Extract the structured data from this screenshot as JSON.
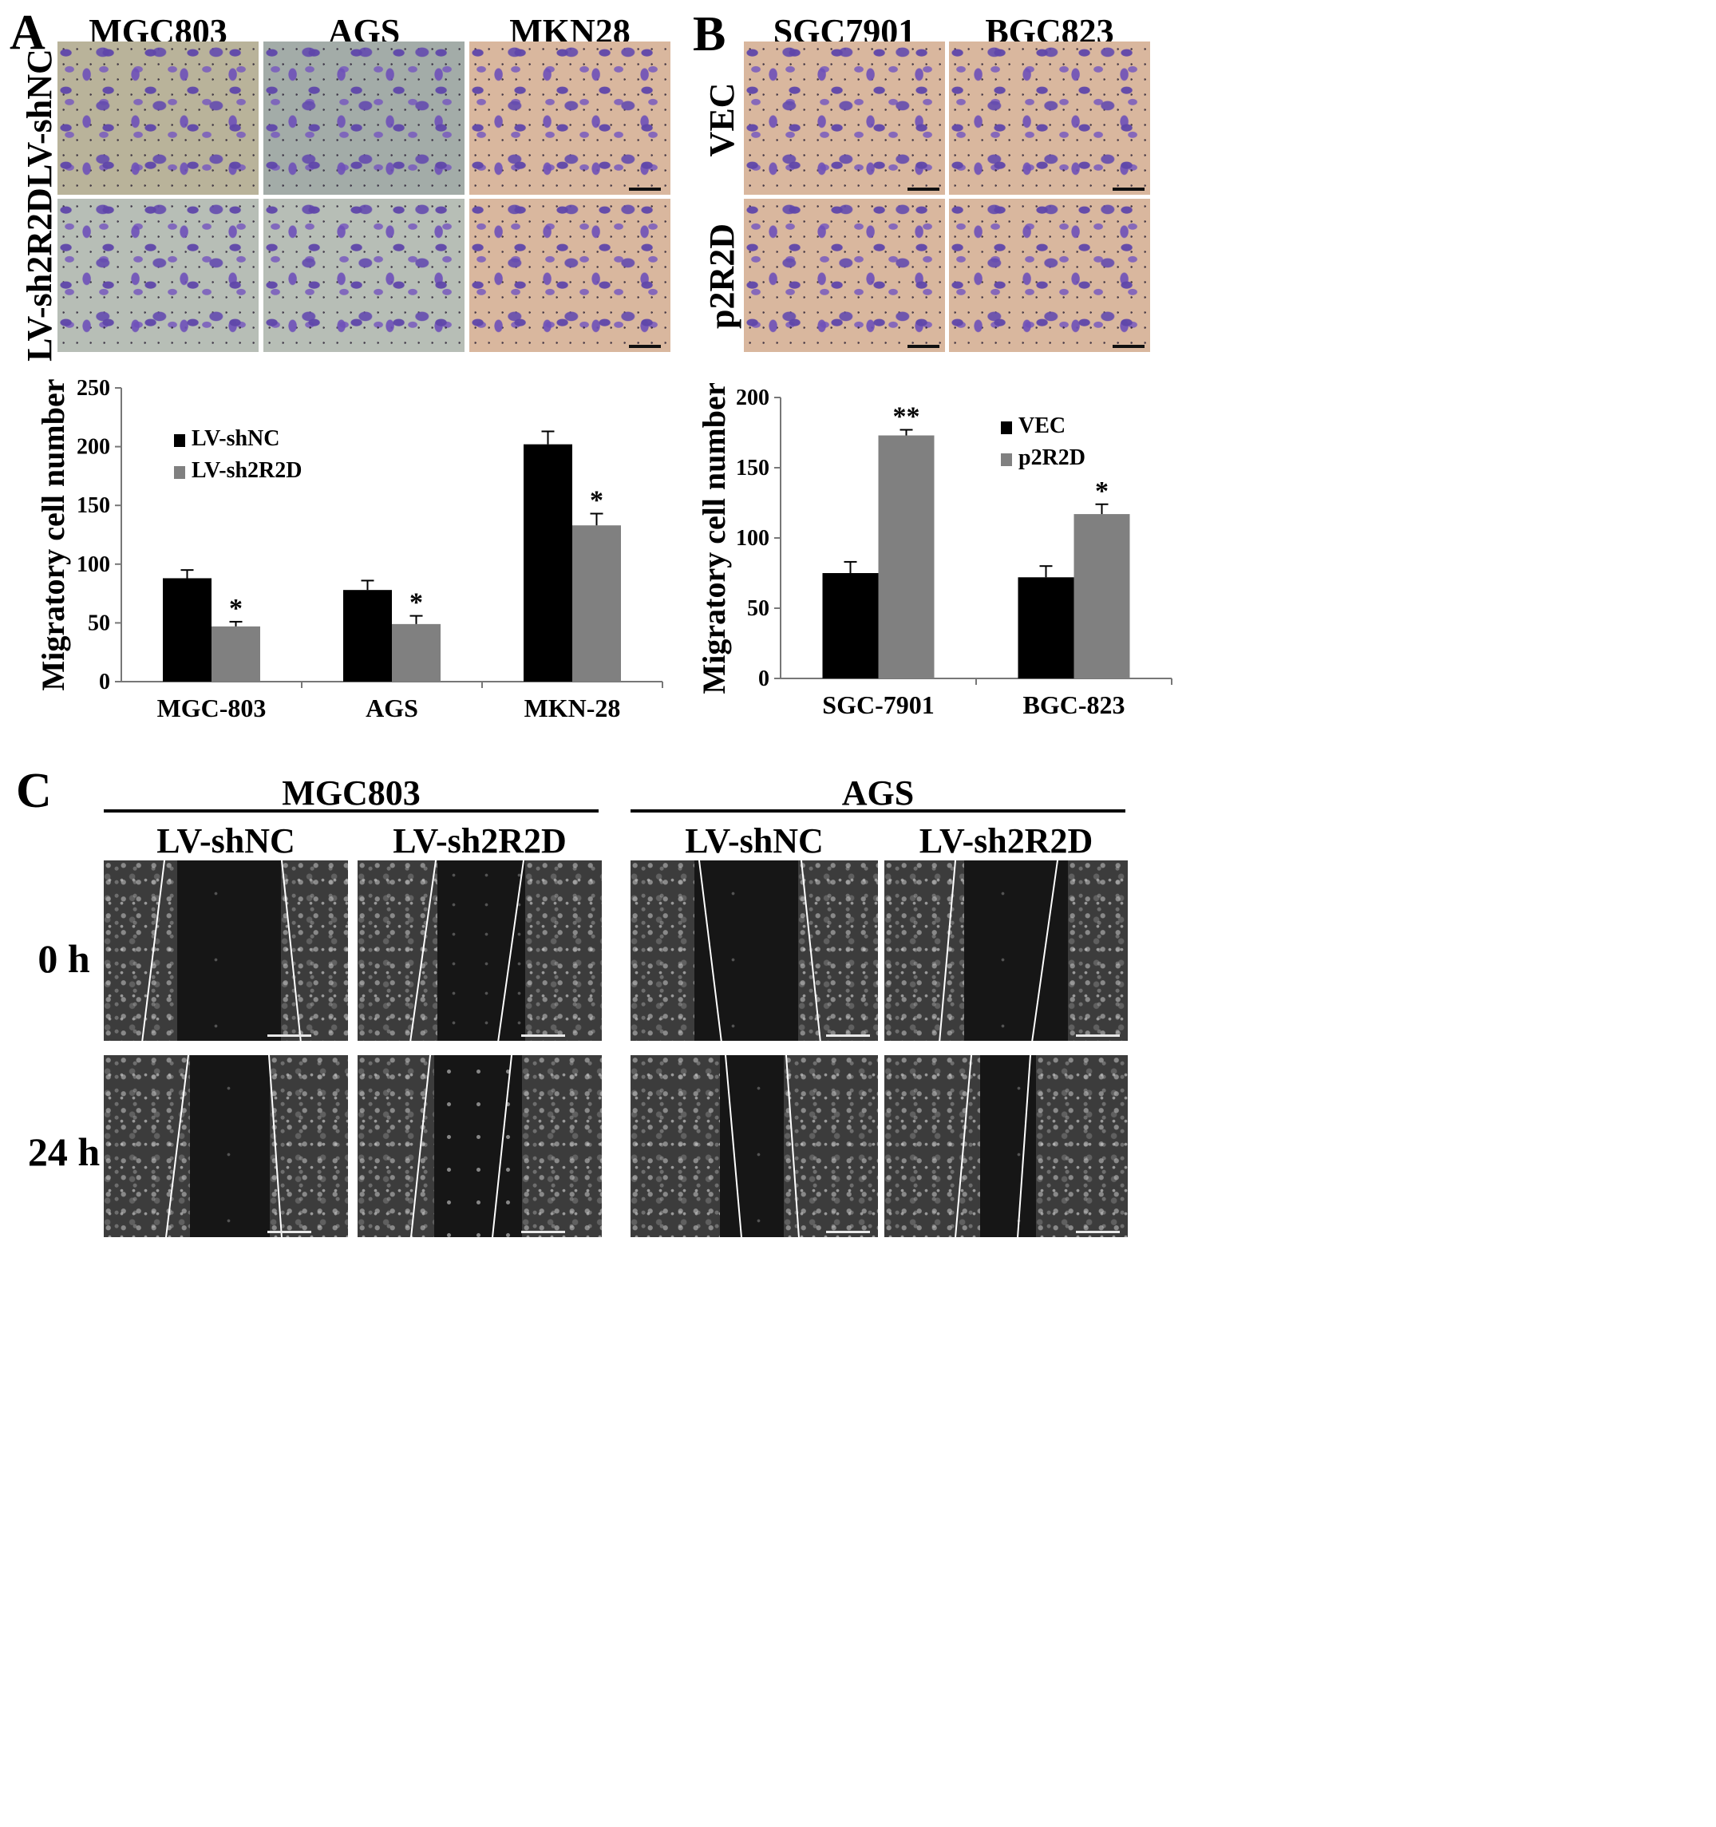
{
  "panels": {
    "A": {
      "letter": "A",
      "columns": [
        "MGC803",
        "AGS",
        "MKN28"
      ],
      "rows": [
        "LV-shNC",
        "LV-sh2R2D"
      ]
    },
    "B": {
      "letter": "B",
      "columns": [
        "SGC7901",
        "BGC823"
      ],
      "rows": [
        "VEC",
        "p2R2D"
      ]
    },
    "C": {
      "letter": "C",
      "groups": [
        {
          "name": "MGC803",
          "conditions": [
            "LV-shNC",
            "LV-sh2R2D"
          ]
        },
        {
          "name": "AGS",
          "conditions": [
            "LV-shNC",
            "LV-sh2R2D"
          ]
        }
      ],
      "rows": [
        "0 h",
        "24 h"
      ]
    }
  },
  "chart_data": [
    {
      "type": "bar",
      "panel": "A",
      "categories": [
        "MGC-803",
        "AGS",
        "MKN-28"
      ],
      "ylabel": "Migratory cell number",
      "ylim": [
        0,
        250
      ],
      "yticks": [
        0,
        50,
        100,
        150,
        200,
        250
      ],
      "legend_position": "top-left",
      "series": [
        {
          "name": "LV-shNC",
          "color": "#000000",
          "values": [
            88,
            78,
            202
          ],
          "errors": [
            7,
            8,
            11
          ]
        },
        {
          "name": "LV-sh2R2D",
          "color": "#808080",
          "values": [
            47,
            49,
            133
          ],
          "errors": [
            4,
            7,
            10
          ]
        }
      ],
      "annotations": [
        {
          "series": 1,
          "category": 0,
          "text": "*"
        },
        {
          "series": 1,
          "category": 1,
          "text": "*"
        },
        {
          "series": 1,
          "category": 2,
          "text": "*"
        }
      ]
    },
    {
      "type": "bar",
      "panel": "B",
      "categories": [
        "SGC-7901",
        "BGC-823"
      ],
      "ylabel": "Migratory cell number",
      "ylim": [
        0,
        200
      ],
      "yticks": [
        0,
        50,
        100,
        150,
        200
      ],
      "legend_position": "top-right",
      "series": [
        {
          "name": "VEC",
          "color": "#000000",
          "values": [
            75,
            72
          ],
          "errors": [
            8,
            8
          ]
        },
        {
          "name": "p2R2D",
          "color": "#808080",
          "values": [
            173,
            117
          ],
          "errors": [
            4,
            7
          ]
        }
      ],
      "annotations": [
        {
          "series": 1,
          "category": 0,
          "text": "**"
        },
        {
          "series": 1,
          "category": 1,
          "text": "*"
        }
      ]
    }
  ]
}
